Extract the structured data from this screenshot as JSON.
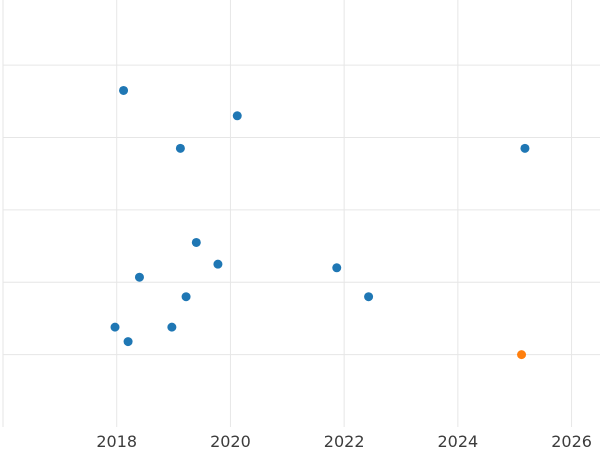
{
  "chart_data": {
    "type": "scatter",
    "title": "",
    "xlabel": "",
    "ylabel": "",
    "xlim": [
      2016.0,
      2026.5
    ],
    "ylim": [
      0.0,
      5.9
    ],
    "grid": true,
    "legend": "none",
    "x_ticks": [
      2018,
      2020,
      2022,
      2024,
      2026
    ],
    "y_grid": [
      1,
      2,
      3,
      4,
      5
    ],
    "series": [
      {
        "color": "#1f77b4",
        "points": [
          {
            "x": 2018.12,
            "y": 4.65
          },
          {
            "x": 2020.12,
            "y": 4.3
          },
          {
            "x": 2019.12,
            "y": 3.85
          },
          {
            "x": 2025.18,
            "y": 3.85
          },
          {
            "x": 2019.4,
            "y": 2.55
          },
          {
            "x": 2019.78,
            "y": 2.25
          },
          {
            "x": 2021.87,
            "y": 2.2
          },
          {
            "x": 2018.4,
            "y": 2.07
          },
          {
            "x": 2019.22,
            "y": 1.8
          },
          {
            "x": 2022.43,
            "y": 1.8
          },
          {
            "x": 2017.97,
            "y": 1.38
          },
          {
            "x": 2018.97,
            "y": 1.38
          },
          {
            "x": 2018.2,
            "y": 1.18
          }
        ]
      },
      {
        "color": "#ff7f0e",
        "points": [
          {
            "x": 2025.12,
            "y": 1.0
          }
        ]
      }
    ]
  }
}
